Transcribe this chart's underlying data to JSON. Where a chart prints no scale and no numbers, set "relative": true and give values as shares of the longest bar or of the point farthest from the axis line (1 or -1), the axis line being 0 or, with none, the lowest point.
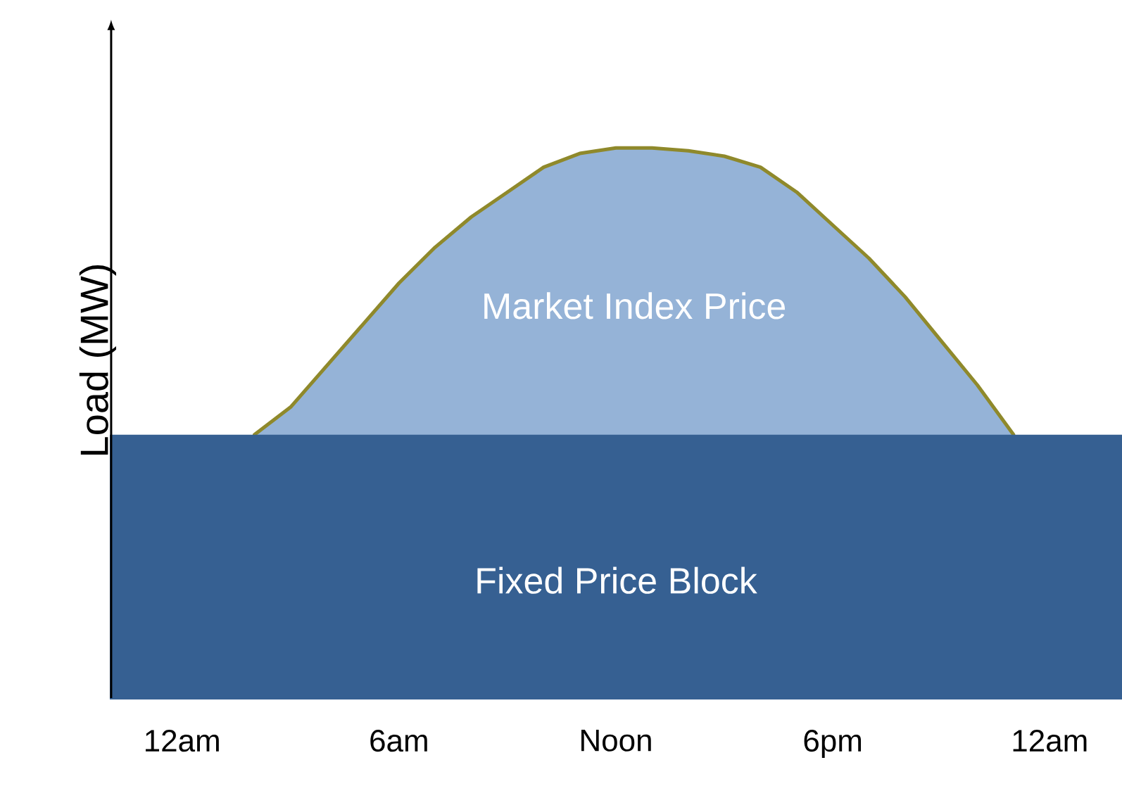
{
  "chart_data": {
    "type": "area",
    "relative": true,
    "ylabel": "Load (MW)",
    "categories": [
      null,
      null,
      "12am",
      null,
      null,
      null,
      null,
      null,
      "6am",
      null,
      null,
      null,
      null,
      null,
      "Noon",
      null,
      null,
      null,
      null,
      null,
      "6pm",
      null,
      null,
      null,
      null,
      null,
      "12am",
      null,
      null
    ],
    "series": [
      {
        "name": "Market Index Price",
        "color": "#95b3d7",
        "values": [
          null,
          null,
          null,
          null,
          0.48,
          0.53,
          0.605,
          0.68,
          0.755,
          0.82,
          0.875,
          0.92,
          0.965,
          0.99,
          1.0,
          1.0,
          0.995,
          0.985,
          0.965,
          0.92,
          0.86,
          0.8,
          0.73,
          0.65,
          0.57,
          0.48,
          null,
          null,
          null
        ]
      },
      {
        "name": "Fixed Price Block",
        "color": "#366092",
        "values": [
          0.48,
          0.48,
          0.48,
          0.48,
          0.48,
          0.48,
          0.48,
          0.48,
          0.48,
          0.48,
          0.48,
          0.48,
          0.48,
          0.48,
          0.48,
          0.48,
          0.48,
          0.48,
          0.48,
          0.48,
          0.48,
          0.48,
          0.48,
          0.48,
          0.48,
          0.48,
          0.48,
          0.48,
          0.48
        ]
      }
    ],
    "legend": false,
    "grid": false
  }
}
